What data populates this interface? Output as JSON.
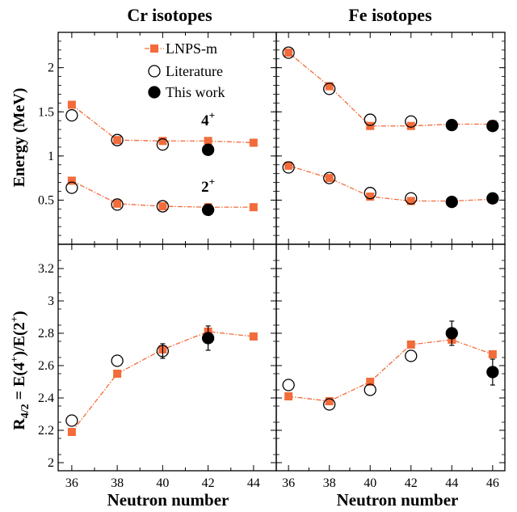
{
  "chart_data": {
    "type": "scatter",
    "colors": {
      "lnps": "#f26b3a",
      "marker": "#000000"
    },
    "legend": {
      "placement": "top-left of upper-left panel",
      "entries": [
        "LNPS-m",
        "Literature",
        "This work"
      ]
    },
    "columns": [
      {
        "title": "Cr isotopes",
        "xlabel": "Neutron number",
        "xlim": [
          35.4,
          45.0
        ],
        "xticks": [
          36,
          38,
          40,
          42,
          44
        ]
      },
      {
        "title": "Fe isotopes",
        "xlabel": "Neutron number",
        "xlim": [
          35.4,
          46.6
        ],
        "xticks": [
          36,
          38,
          40,
          42,
          44,
          46
        ]
      }
    ],
    "rows": [
      {
        "ylabel": "Energy (MeV)",
        "ylim": [
          0.0,
          2.4
        ],
        "yticks": [
          "0.5",
          "1",
          "1.5",
          "2"
        ]
      },
      {
        "ylabel": "R4/2 = E(4+)/E(2+)",
        "yticks": [
          "2",
          "2.2",
          "2.4",
          "2.6",
          "2.8",
          "3",
          "3.2"
        ],
        "ylim": [
          1.95,
          3.35
        ]
      }
    ],
    "panels": [
      {
        "row": 0,
        "col": 0,
        "level_labels": [
          {
            "base": "4",
            "sup": "+",
            "x": 42,
            "y": 1.4
          },
          {
            "base": "2",
            "sup": "+",
            "x": 42,
            "y": 0.65
          }
        ],
        "series": [
          {
            "name": "LNPS-m",
            "x": [
              36,
              38,
              40,
              42,
              44
            ],
            "y": [
              1.58,
              1.18,
              1.17,
              1.17,
              1.15
            ]
          },
          {
            "name": "LNPS-m",
            "x": [
              36,
              38,
              40,
              42,
              44
            ],
            "y": [
              0.72,
              0.46,
              0.43,
              0.42,
              0.42
            ]
          },
          {
            "name": "Literature",
            "x": [
              36,
              38,
              40
            ],
            "y": [
              1.46,
              1.18,
              1.13
            ]
          },
          {
            "name": "Literature",
            "x": [
              36,
              38,
              40
            ],
            "y": [
              0.64,
              0.45,
              0.43
            ]
          },
          {
            "name": "This work",
            "x": [
              42
            ],
            "y": [
              1.07
            ]
          },
          {
            "name": "This work",
            "x": [
              42
            ],
            "y": [
              0.39
            ]
          }
        ]
      },
      {
        "row": 0,
        "col": 1,
        "level_labels": [],
        "series": [
          {
            "name": "LNPS-m",
            "x": [
              36,
              38,
              40,
              42,
              44,
              46
            ],
            "y": [
              2.17,
              1.79,
              1.34,
              1.34,
              1.36,
              1.36
            ]
          },
          {
            "name": "LNPS-m",
            "x": [
              36,
              38,
              40,
              42,
              44,
              46
            ],
            "y": [
              0.89,
              0.75,
              0.54,
              0.49,
              0.49,
              0.51
            ]
          },
          {
            "name": "Literature",
            "x": [
              36,
              38,
              40,
              42
            ],
            "y": [
              2.17,
              1.76,
              1.41,
              1.39
            ]
          },
          {
            "name": "Literature",
            "x": [
              36,
              38,
              40,
              42
            ],
            "y": [
              0.87,
              0.75,
              0.58,
              0.52
            ]
          },
          {
            "name": "This work",
            "x": [
              44,
              46
            ],
            "y": [
              1.35,
              1.34
            ]
          },
          {
            "name": "This work",
            "x": [
              44,
              46
            ],
            "y": [
              0.48,
              0.52
            ]
          }
        ]
      },
      {
        "row": 1,
        "col": 0,
        "level_labels": [],
        "series": [
          {
            "name": "LNPS-m",
            "x": [
              36,
              38,
              40,
              42,
              44
            ],
            "y": [
              2.19,
              2.55,
              2.7,
              2.81,
              2.78
            ]
          },
          {
            "name": "Literature",
            "x": [
              36,
              38,
              40
            ],
            "y": [
              2.26,
              2.63,
              2.69
            ],
            "err": [
              0,
              0,
              0.045
            ]
          },
          {
            "name": "This work",
            "x": [
              42
            ],
            "y": [
              2.77
            ],
            "err": [
              0.075
            ]
          }
        ]
      },
      {
        "row": 1,
        "col": 1,
        "level_labels": [],
        "series": [
          {
            "name": "LNPS-m",
            "x": [
              36,
              38,
              40,
              42,
              44,
              46
            ],
            "y": [
              2.41,
              2.38,
              2.5,
              2.73,
              2.76,
              2.67
            ]
          },
          {
            "name": "Literature",
            "x": [
              36,
              38,
              40,
              42
            ],
            "y": [
              2.48,
              2.36,
              2.45,
              2.66
            ]
          },
          {
            "name": "This work",
            "x": [
              44,
              46
            ],
            "y": [
              2.8,
              2.56
            ],
            "err": [
              0.075,
              0.08
            ]
          }
        ]
      }
    ]
  }
}
